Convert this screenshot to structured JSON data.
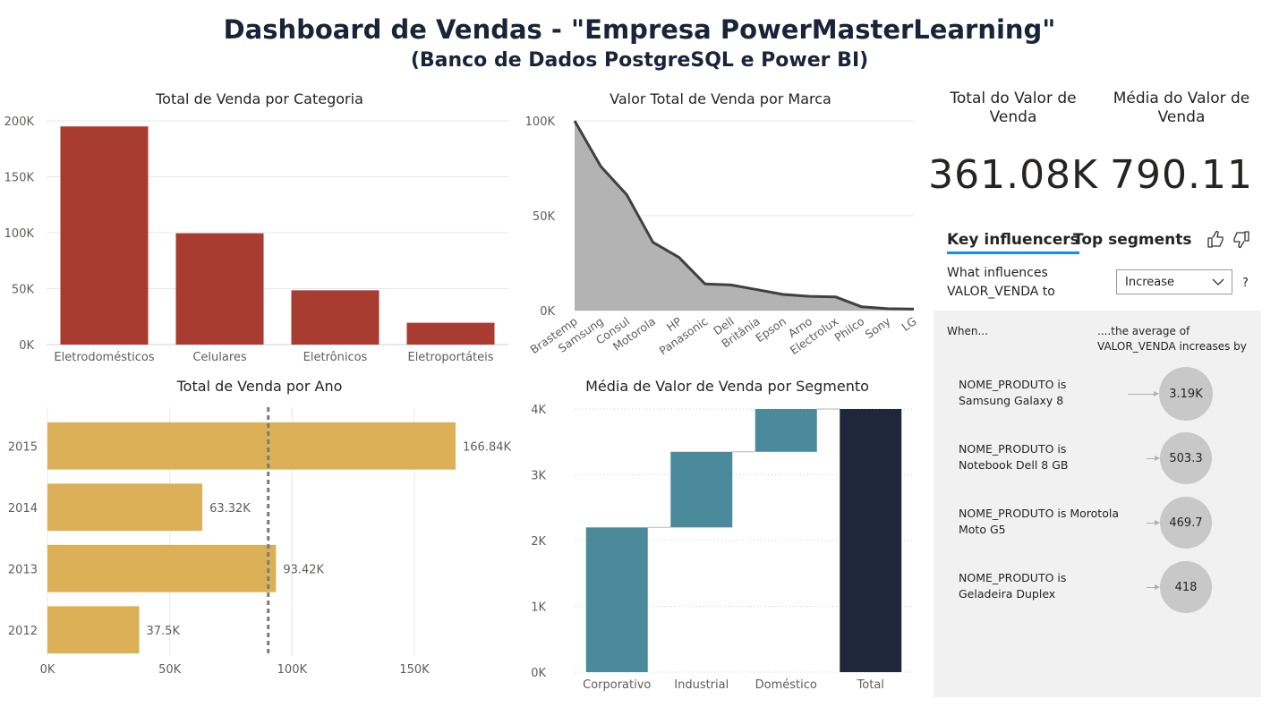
{
  "header": {
    "title": "Dashboard de Vendas - \"Empresa PowerMasterLearning\"",
    "subtitle": "(Banco de Dados PostgreSQL e Power BI)"
  },
  "colors": {
    "bar_categoria": "#a93c30",
    "bar_ano": "#dbb056",
    "area_fill": "#b3b3b3",
    "area_line": "#404040",
    "waterfall": "#4a8a9a",
    "total": "#1f273d",
    "tab_accent": "#118dff"
  },
  "chart_data": [
    {
      "id": "categoria",
      "type": "bar",
      "title": "Total de Venda por Categoria",
      "categories": [
        "Eletrodomésticos",
        "Celulares",
        "Eletrônicos",
        "Eletroportáteis"
      ],
      "values": [
        195000,
        99500,
        48500,
        19500
      ],
      "yticks": [
        "0K",
        "50K",
        "100K",
        "150K",
        "200K"
      ],
      "ylim": [
        0,
        200000
      ]
    },
    {
      "id": "marca",
      "type": "area",
      "title": "Valor Total de Venda por Marca",
      "categories": [
        "Brastemp",
        "Samsung",
        "Consul",
        "Motorola",
        "HP",
        "Panasonic",
        "Dell",
        "Britânia",
        "Epson",
        "Arno",
        "Electrolux",
        "Philco",
        "Sony",
        "LG"
      ],
      "values": [
        100000,
        76000,
        61000,
        36000,
        28000,
        14000,
        13500,
        11000,
        8500,
        7500,
        7200,
        2000,
        1000,
        800
      ],
      "yticks": [
        "0K",
        "50K",
        "100K"
      ],
      "ylim": [
        0,
        100000
      ]
    },
    {
      "id": "ano",
      "type": "bar",
      "orientation": "horizontal",
      "title": "Total de Venda por Ano",
      "categories": [
        "2015",
        "2014",
        "2013",
        "2012"
      ],
      "values": [
        166840,
        63320,
        93420,
        37500
      ],
      "labels": [
        "166.84K",
        "63.32K",
        "93.42K",
        "37.5K"
      ],
      "xticks": [
        "0K",
        "50K",
        "100K",
        "150K"
      ],
      "xlim": [
        0,
        180000
      ],
      "reference_line": 90270
    },
    {
      "id": "segmento",
      "type": "waterfall",
      "title": "Média de Valor de Venda por Segmento",
      "categories": [
        "Corporativo",
        "Industrial",
        "Doméstico",
        "Total"
      ],
      "values": [
        2200,
        1150,
        650,
        4000
      ],
      "yticks": [
        "0K",
        "1K",
        "2K",
        "3K",
        "4K"
      ],
      "ylim": [
        0,
        4000
      ]
    }
  ],
  "kpis": [
    {
      "label": "Total do Valor de Venda",
      "value": "361.08K"
    },
    {
      "label": "Média do Valor de Venda",
      "value": "790.11"
    }
  ],
  "key_influencers": {
    "tabs": [
      "Key influencers",
      "Top segments"
    ],
    "question": "What influences VALOR_VENDA to",
    "select_value": "Increase",
    "help": "?",
    "when_label": "When...",
    "average_label": "....the average of VALOR_VENDA increases by",
    "items": [
      {
        "condition": "NOME_PRODUTO is Samsung Galaxy 8",
        "value": "3.19K"
      },
      {
        "condition": "NOME_PRODUTO is Notebook Dell 8 GB",
        "value": "503.3"
      },
      {
        "condition": "NOME_PRODUTO is Morotola Moto G5",
        "value": "469.7"
      },
      {
        "condition": "NOME_PRODUTO is Geladeira Duplex",
        "value": "418"
      }
    ]
  }
}
